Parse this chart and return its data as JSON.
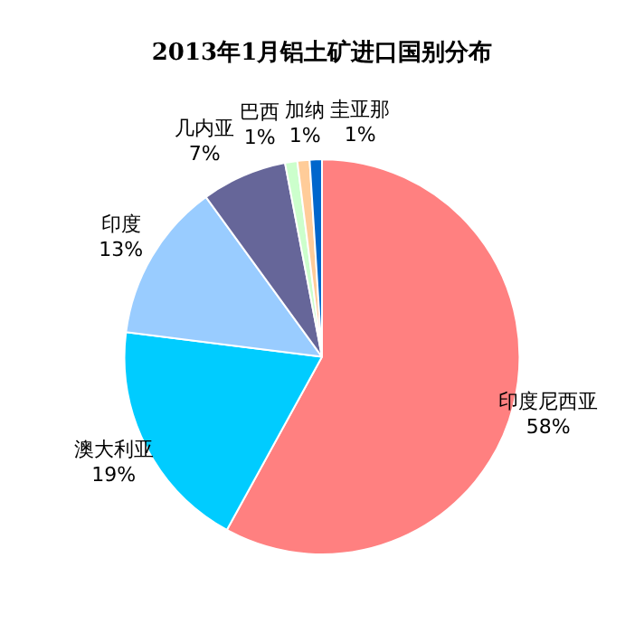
{
  "chart_data": {
    "type": "pie",
    "title": "2013年1月铝土矿进口国别分布",
    "categories": [
      "印度尼西亚",
      "澳大利亚",
      "印度",
      "几内亚",
      "巴西",
      "加纳",
      "圭亚那"
    ],
    "values": [
      58,
      19,
      13,
      7,
      1,
      1,
      1
    ],
    "value_labels": [
      "58%",
      "19%",
      "13%",
      "7%",
      "1%",
      "1%",
      "1%"
    ],
    "colors": [
      "#ff8080",
      "#00ccff",
      "#99ccff",
      "#666699",
      "#ccffcc",
      "#ffcc99",
      "#0066cc"
    ],
    "legend": false
  }
}
